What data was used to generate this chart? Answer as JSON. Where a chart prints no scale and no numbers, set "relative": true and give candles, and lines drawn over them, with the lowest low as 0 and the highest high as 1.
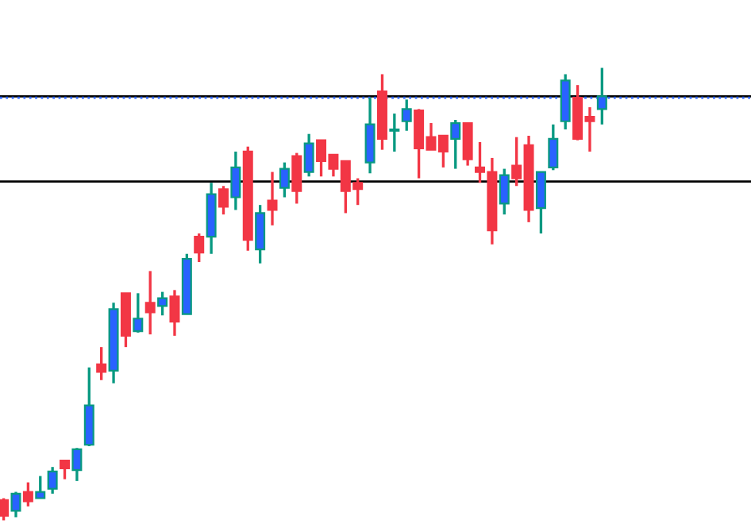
{
  "chart_data": {
    "type": "candlestick",
    "relative": true,
    "categories": [
      null,
      null,
      null,
      null,
      null,
      null,
      null,
      null,
      null,
      null,
      null,
      null,
      null,
      null,
      null,
      null,
      null,
      null,
      null,
      null,
      null,
      null,
      null,
      null,
      null,
      null,
      null,
      null,
      null,
      null,
      null,
      null,
      null,
      null,
      null,
      null,
      null,
      null,
      null,
      null,
      null,
      null,
      null,
      null,
      null,
      null,
      null,
      null,
      null,
      null
    ],
    "ohlc": [
      [
        0.045,
        0.049,
        0,
        0.01
      ],
      [
        0.021,
        0.063,
        0.007,
        0.059
      ],
      [
        0.063,
        0.084,
        0.031,
        0.042
      ],
      [
        0.049,
        0.098,
        0.049,
        0.063
      ],
      [
        0.07,
        0.118,
        0.059,
        0.108
      ],
      [
        0.132,
        0.132,
        0.091,
        0.115
      ],
      [
        0.111,
        0.16,
        0.087,
        0.157
      ],
      [
        0.167,
        0.338,
        0.164,
        0.254
      ],
      [
        0.345,
        0.383,
        0.31,
        0.328
      ],
      [
        0.331,
        0.481,
        0.303,
        0.467
      ],
      [
        0.502,
        0.502,
        0.383,
        0.408
      ],
      [
        0.418,
        0.502,
        0.415,
        0.446
      ],
      [
        0.481,
        0.551,
        0.411,
        0.46
      ],
      [
        0.474,
        0.505,
        0.453,
        0.491
      ],
      [
        0.495,
        0.509,
        0.408,
        0.439
      ],
      [
        0.456,
        0.589,
        0.456,
        0.578
      ],
      [
        0.627,
        0.634,
        0.571,
        0.592
      ],
      [
        0.627,
        0.746,
        0.589,
        0.721
      ],
      [
        0.732,
        0.739,
        0.676,
        0.693
      ],
      [
        0.714,
        0.815,
        0.686,
        0.78
      ],
      [
        0.815,
        0.826,
        0.596,
        0.62
      ],
      [
        0.599,
        0.697,
        0.568,
        0.679
      ],
      [
        0.707,
        0.77,
        0.652,
        0.686
      ],
      [
        0.735,
        0.791,
        0.714,
        0.777
      ],
      [
        0.805,
        0.812,
        0.7,
        0.728
      ],
      [
        0.77,
        0.854,
        0.76,
        0.833
      ],
      [
        0.84,
        0.84,
        0.76,
        0.794
      ],
      [
        0.808,
        0.808,
        0.76,
        0.777
      ],
      [
        0.794,
        0.794,
        0.679,
        0.728
      ],
      [
        0.746,
        0.756,
        0.697,
        0.732
      ],
      [
        0.791,
        0.934,
        0.767,
        0.875
      ],
      [
        0.948,
        0.986,
        0.819,
        0.843
      ],
      [
        0.861,
        0.899,
        0.815,
        0.864
      ],
      [
        0.882,
        0.93,
        0.861,
        0.909
      ],
      [
        0.906,
        0.909,
        0.756,
        0.822
      ],
      [
        0.847,
        0.878,
        0.819,
        0.819
      ],
      [
        0.85,
        0.85,
        0.78,
        0.815
      ],
      [
        0.843,
        0.885,
        0.777,
        0.878
      ],
      [
        0.878,
        0.878,
        0.784,
        0.798
      ],
      [
        0.78,
        0.836,
        0.746,
        0.77
      ],
      [
        0.77,
        0.801,
        0.61,
        0.641
      ],
      [
        0.7,
        0.777,
        0.676,
        0.763
      ],
      [
        0.784,
        0.847,
        0.739,
        0.756
      ],
      [
        0.829,
        0.85,
        0.659,
        0.686
      ],
      [
        0.69,
        0.77,
        0.634,
        0.77
      ],
      [
        0.78,
        0.875,
        0.774,
        0.843
      ],
      [
        0.882,
        0.986,
        0.864,
        0.972
      ],
      [
        0.934,
        0.962,
        0.84,
        0.843
      ],
      [
        0.892,
        0.913,
        0.815,
        0.882
      ],
      [
        0.909,
        1,
        0.875,
        0.937
      ]
    ],
    "colors": [
      "#f23645",
      "#2962ff",
      "#f23645",
      "#2962ff",
      "#2962ff",
      "#f23645",
      "#2962ff",
      "#2962ff",
      "#f23645",
      "#2962ff",
      "#f23645",
      "#2962ff",
      "#f23645",
      "#2962ff",
      "#f23645",
      "#2962ff",
      "#f23645",
      "#2962ff",
      "#f23645",
      "#2962ff",
      "#f23645",
      "#2962ff",
      "#f23645",
      "#2962ff",
      "#f23645",
      "#2962ff",
      "#f23645",
      "#f23645",
      "#f23645",
      "#f23645",
      "#2962ff",
      "#f23645",
      "#2962ff",
      "#2962ff",
      "#f23645",
      "#f23645",
      "#f23645",
      "#2962ff",
      "#f23645",
      "#f23645",
      "#f23645",
      "#2962ff",
      "#f23645",
      "#f23645",
      "#2962ff",
      "#2962ff",
      "#2962ff",
      "#f23645",
      "#f23645",
      "#2962ff"
    ],
    "ref_lines": [
      {
        "axis": "y",
        "value": 0.937,
        "color": "#000000",
        "line_style": "solid"
      },
      {
        "axis": "y",
        "value": 0.749,
        "color": "#000000",
        "line_style": "solid"
      },
      {
        "axis": "y",
        "value": 0.934,
        "color": "#2962ff",
        "line_style": "dotted"
      }
    ]
  }
}
